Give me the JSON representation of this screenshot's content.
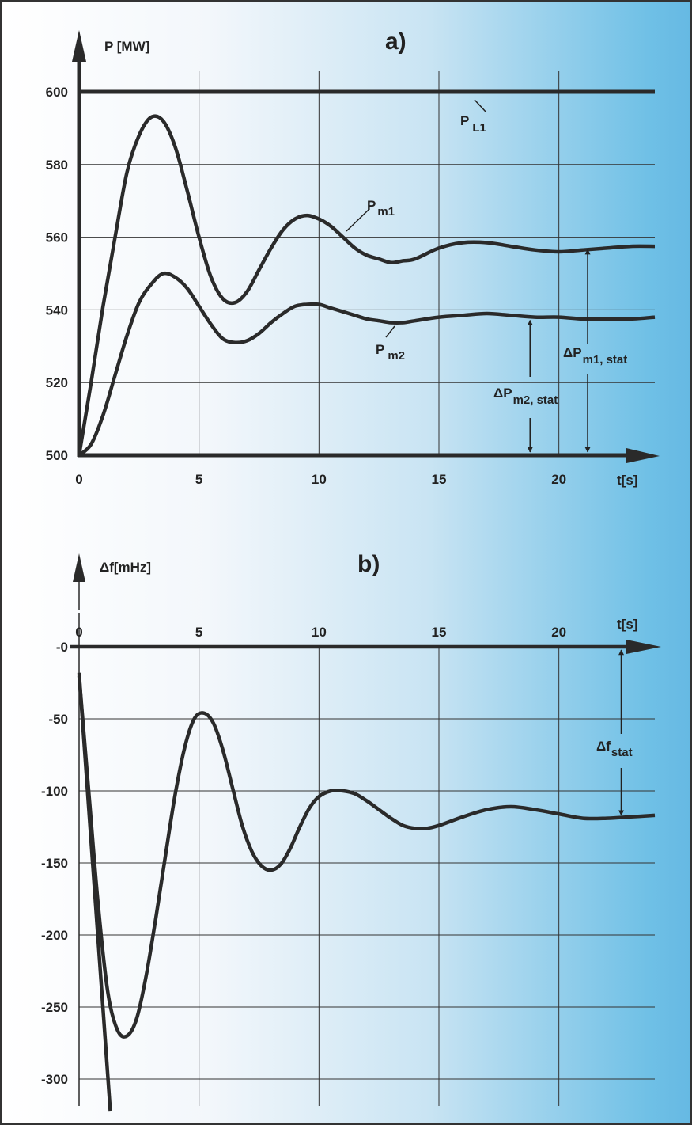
{
  "chart_data": [
    {
      "type": "line",
      "panel_label": "a)",
      "ylabel": "P [MW]",
      "xlabel": "t[s]",
      "xlim": [
        0,
        24
      ],
      "ylim": [
        500,
        600
      ],
      "x_ticks": [
        "0",
        "5",
        "10",
        "15",
        "20"
      ],
      "y_ticks": [
        "500",
        "520",
        "540",
        "560",
        "580",
        "600"
      ],
      "grid": true,
      "series": [
        {
          "label_main": "P",
          "label_sub": "L1",
          "x": [
            0,
            24
          ],
          "y": [
            600,
            600
          ]
        },
        {
          "label_main": "P",
          "label_sub": "m1",
          "x": [
            0,
            0.5,
            1,
            1.5,
            2,
            2.5,
            3,
            3.5,
            4,
            4.5,
            5,
            5.5,
            6,
            6.5,
            7,
            7.5,
            8,
            8.5,
            9,
            9.5,
            10,
            10.5,
            11,
            11.5,
            12,
            12.5,
            13,
            13.5,
            14,
            15,
            16,
            17,
            18,
            19,
            20,
            21,
            22,
            23,
            24
          ],
          "y": [
            500,
            520,
            541,
            560,
            578,
            588,
            593,
            592,
            585,
            573,
            560,
            549,
            543,
            542,
            545,
            551,
            557,
            562,
            565,
            566,
            565,
            563,
            560,
            557,
            555,
            554,
            553,
            553.5,
            554,
            557,
            558.5,
            558.5,
            557.5,
            556.5,
            556,
            556.5,
            557,
            557.5,
            557.5
          ]
        },
        {
          "label_main": "P",
          "label_sub": "m2",
          "x": [
            0,
            0.5,
            1,
            1.5,
            2,
            2.5,
            3,
            3.5,
            4,
            4.5,
            5,
            5.5,
            6,
            6.5,
            7,
            7.5,
            8,
            8.5,
            9,
            9.5,
            10,
            10.5,
            11,
            11.5,
            12,
            12.5,
            13,
            13.5,
            14,
            15,
            16,
            17,
            18,
            19,
            20,
            21,
            22,
            23,
            24
          ],
          "y": [
            500,
            503,
            511,
            522,
            533,
            542,
            547,
            550,
            549,
            546,
            541,
            536,
            532,
            531,
            531.5,
            533.5,
            536.5,
            539,
            541,
            541.5,
            541.5,
            540.5,
            539.5,
            538.5,
            537.5,
            537,
            536.5,
            536.5,
            537,
            538,
            538.5,
            539,
            538.5,
            538,
            538,
            537.5,
            537.5,
            537.5,
            538
          ]
        }
      ],
      "annotations": [
        {
          "label_main": "ΔP",
          "label_sub": "m1, stat",
          "between": [
            557.5,
            500
          ],
          "at_x": 21.2
        },
        {
          "label_main": "ΔP",
          "label_sub": "m2, stat",
          "between": [
            538,
            500
          ],
          "at_x": 18.8
        }
      ]
    },
    {
      "type": "line",
      "panel_label": "b)",
      "ylabel": "Δf[mHz]",
      "xlabel": "t[s]",
      "xlim": [
        0,
        24
      ],
      "ylim": [
        -315,
        0
      ],
      "x_ticks": [
        "0",
        "5",
        "10",
        "15",
        "20"
      ],
      "y_ticks": [
        "-0",
        "-50",
        "-100",
        "-150",
        "-200",
        "-250",
        "-300"
      ],
      "grid": true,
      "series": [
        {
          "label_main": "Δf",
          "label_sub": "",
          "x": [
            0,
            0.4,
            0.8,
            1.2,
            1.6,
            2,
            2.4,
            2.8,
            3.2,
            3.6,
            4,
            4.4,
            4.8,
            5.2,
            5.6,
            6,
            6.4,
            6.8,
            7.2,
            7.6,
            8,
            8.4,
            8.8,
            9.2,
            9.6,
            10,
            10.5,
            11,
            11.5,
            12,
            12.5,
            13,
            13.5,
            14,
            14.5,
            15,
            16,
            17,
            18,
            19,
            20,
            21,
            22,
            23,
            24
          ],
          "y": [
            -20,
            -100,
            -180,
            -240,
            -266,
            -270,
            -258,
            -228,
            -188,
            -145,
            -103,
            -70,
            -50,
            -46,
            -53,
            -72,
            -98,
            -124,
            -142,
            -152,
            -155,
            -151,
            -140,
            -125,
            -112,
            -104,
            -100,
            -100,
            -102,
            -107,
            -113,
            -119,
            -124,
            -126,
            -126,
            -124,
            -118,
            -113,
            -111,
            -113,
            -116,
            -119,
            -119,
            -118,
            -117
          ]
        },
        {
          "label_main": "",
          "label_sub": "",
          "x": [
            0,
            1.3
          ],
          "y": [
            -18,
            -322
          ]
        }
      ],
      "annotations": [
        {
          "label_main": "Δf",
          "label_sub": "stat",
          "between": [
            0,
            -118
          ],
          "at_x": 22.6
        }
      ]
    }
  ]
}
